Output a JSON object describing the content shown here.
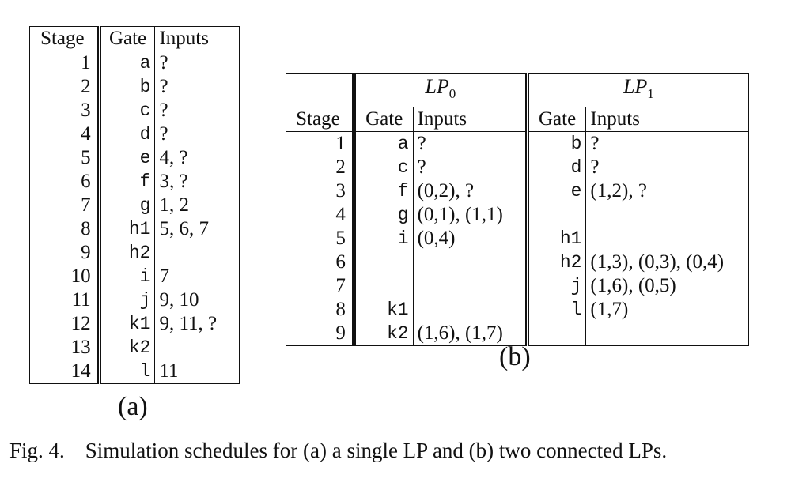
{
  "table_a": {
    "headers": [
      "Stage",
      "Gate",
      "Inputs"
    ],
    "rows": [
      {
        "stage": "1",
        "gate": "a",
        "inputs": "?"
      },
      {
        "stage": "2",
        "gate": "b",
        "inputs": "?"
      },
      {
        "stage": "3",
        "gate": "c",
        "inputs": "?"
      },
      {
        "stage": "4",
        "gate": "d",
        "inputs": "?"
      },
      {
        "stage": "5",
        "gate": "e",
        "inputs": "4, ?"
      },
      {
        "stage": "6",
        "gate": "f",
        "inputs": "3, ?"
      },
      {
        "stage": "7",
        "gate": "g",
        "inputs": "1, 2"
      },
      {
        "stage": "8",
        "gate": "h1",
        "inputs": "5, 6, 7"
      },
      {
        "stage": "9",
        "gate": "h2",
        "inputs": ""
      },
      {
        "stage": "10",
        "gate": "i",
        "inputs": "7"
      },
      {
        "stage": "11",
        "gate": "j",
        "inputs": "9, 10"
      },
      {
        "stage": "12",
        "gate": "k1",
        "inputs": "9, 11, ?"
      },
      {
        "stage": "13",
        "gate": "k2",
        "inputs": ""
      },
      {
        "stage": "14",
        "gate": "l",
        "inputs": "11"
      }
    ],
    "label": "(a)"
  },
  "table_b": {
    "lp0": {
      "name": "LP",
      "sub": "0"
    },
    "lp1": {
      "name": "LP",
      "sub": "1"
    },
    "headers": [
      "Stage",
      "Gate",
      "Inputs",
      "Gate",
      "Inputs"
    ],
    "rows": [
      {
        "stage": "1",
        "g0": "a",
        "i0": "?",
        "g1": "b",
        "i1": "?"
      },
      {
        "stage": "2",
        "g0": "c",
        "i0": "?",
        "g1": "d",
        "i1": "?"
      },
      {
        "stage": "3",
        "g0": "f",
        "i0": "(0,2), ?",
        "g1": "e",
        "i1": "(1,2), ?"
      },
      {
        "stage": "4",
        "g0": "g",
        "i0": "(0,1), (1,1)",
        "g1": "",
        "i1": ""
      },
      {
        "stage": "5",
        "g0": "i",
        "i0": "(0,4)",
        "g1": "h1",
        "i1": ""
      },
      {
        "stage": "6",
        "g0": "",
        "i0": "",
        "g1": "h2",
        "i1": "(1,3), (0,3), (0,4)"
      },
      {
        "stage": "7",
        "g0": "",
        "i0": "",
        "g1": "j",
        "i1": "(1,6), (0,5)"
      },
      {
        "stage": "8",
        "g0": "k1",
        "i0": "",
        "g1": "l",
        "i1": "(1,7)"
      },
      {
        "stage": "9",
        "g0": "k2",
        "i0": "(1,6), (1,7)",
        "g1": "",
        "i1": ""
      }
    ],
    "label": "(b)"
  },
  "caption": {
    "fig": "Fig. 4.",
    "text": "Simulation schedules for (a) a single LP and (b) two connected LPs."
  }
}
